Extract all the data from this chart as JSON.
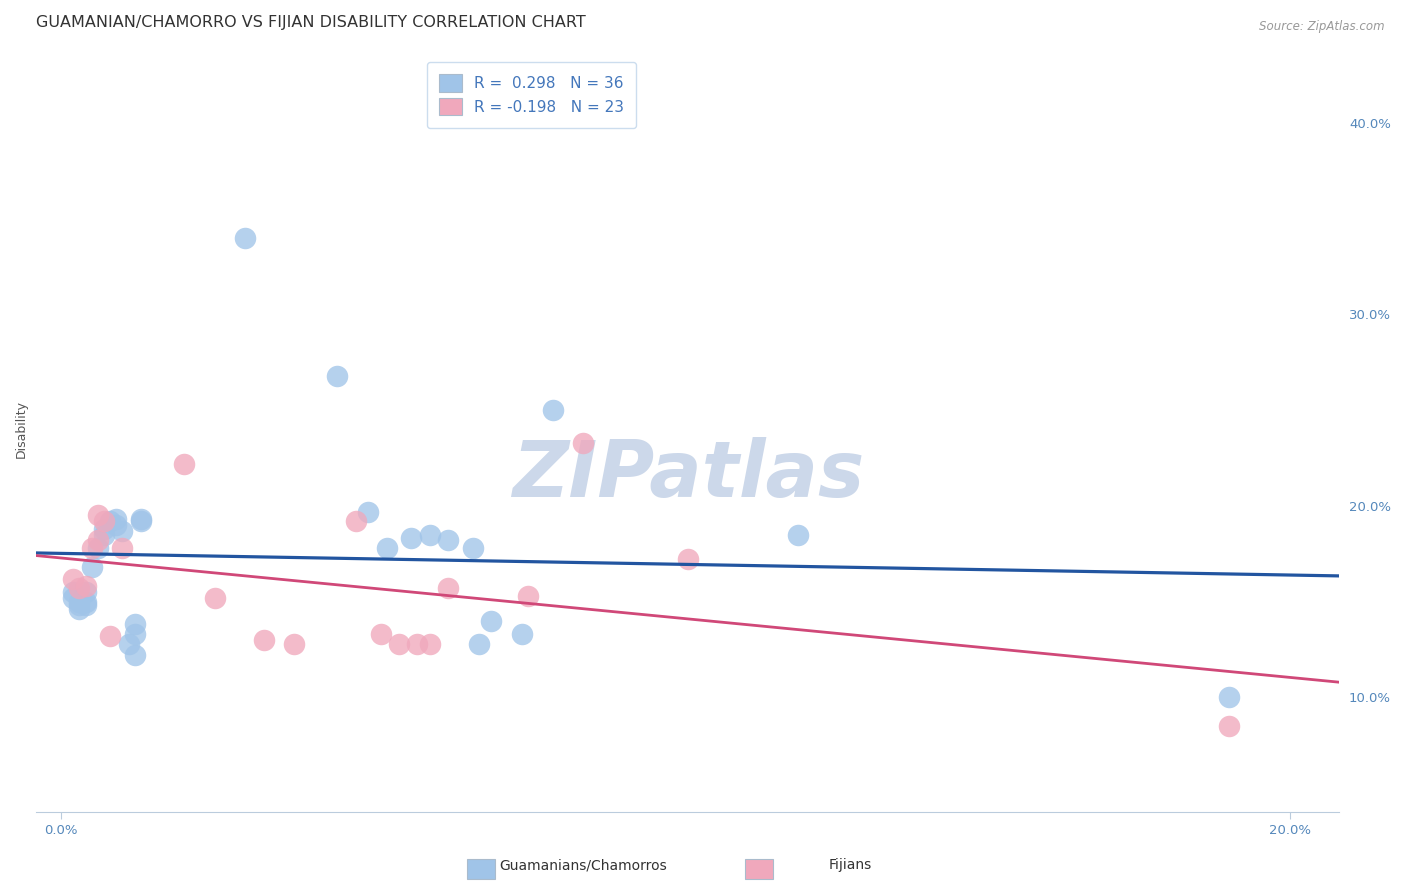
{
  "title": "GUAMANIAN/CHAMORRO VS FIJIAN DISABILITY CORRELATION CHART",
  "source": "Source: ZipAtlas.com",
  "blue_label": "Guamanians/Chamorros",
  "pink_label": "Fijians",
  "blue_R": 0.298,
  "blue_N": 36,
  "pink_R": -0.198,
  "pink_N": 23,
  "blue_color": "#a0c4e8",
  "pink_color": "#f0a8bc",
  "blue_line_color": "#2255a0",
  "pink_line_color": "#d04878",
  "blue_scatter": [
    [
      0.002,
      0.155
    ],
    [
      0.002,
      0.152
    ],
    [
      0.003,
      0.15
    ],
    [
      0.003,
      0.148
    ],
    [
      0.003,
      0.146
    ],
    [
      0.004,
      0.155
    ],
    [
      0.004,
      0.15
    ],
    [
      0.004,
      0.148
    ],
    [
      0.005,
      0.168
    ],
    [
      0.006,
      0.178
    ],
    [
      0.007,
      0.188
    ],
    [
      0.007,
      0.185
    ],
    [
      0.008,
      0.192
    ],
    [
      0.009,
      0.193
    ],
    [
      0.009,
      0.19
    ],
    [
      0.01,
      0.187
    ],
    [
      0.011,
      0.128
    ],
    [
      0.012,
      0.122
    ],
    [
      0.012,
      0.133
    ],
    [
      0.012,
      0.138
    ],
    [
      0.013,
      0.193
    ],
    [
      0.013,
      0.192
    ],
    [
      0.03,
      0.34
    ],
    [
      0.045,
      0.268
    ],
    [
      0.05,
      0.197
    ],
    [
      0.053,
      0.178
    ],
    [
      0.057,
      0.183
    ],
    [
      0.06,
      0.185
    ],
    [
      0.063,
      0.182
    ],
    [
      0.067,
      0.178
    ],
    [
      0.068,
      0.128
    ],
    [
      0.07,
      0.14
    ],
    [
      0.075,
      0.133
    ],
    [
      0.08,
      0.25
    ],
    [
      0.12,
      0.185
    ],
    [
      0.19,
      0.1
    ]
  ],
  "pink_scatter": [
    [
      0.002,
      0.162
    ],
    [
      0.003,
      0.157
    ],
    [
      0.004,
      0.158
    ],
    [
      0.005,
      0.178
    ],
    [
      0.006,
      0.182
    ],
    [
      0.006,
      0.195
    ],
    [
      0.007,
      0.192
    ],
    [
      0.008,
      0.132
    ],
    [
      0.01,
      0.178
    ],
    [
      0.02,
      0.222
    ],
    [
      0.025,
      0.152
    ],
    [
      0.033,
      0.13
    ],
    [
      0.038,
      0.128
    ],
    [
      0.048,
      0.192
    ],
    [
      0.052,
      0.133
    ],
    [
      0.055,
      0.128
    ],
    [
      0.058,
      0.128
    ],
    [
      0.06,
      0.128
    ],
    [
      0.063,
      0.157
    ],
    [
      0.076,
      0.153
    ],
    [
      0.085,
      0.233
    ],
    [
      0.102,
      0.172
    ],
    [
      0.19,
      0.085
    ]
  ],
  "xlim": [
    -0.004,
    0.208
  ],
  "ylim": [
    0.04,
    0.44
  ],
  "xlabel_edge_vals": [
    0.0,
    0.2
  ],
  "ylabel_vals": [
    0.1,
    0.2,
    0.3,
    0.4
  ],
  "watermark": "ZIPatlas",
  "watermark_color": "#ccd8ea",
  "background_color": "#ffffff",
  "grid_color": "#c8d8e4",
  "title_fontsize": 11.5,
  "ylabel_fontsize": 9,
  "tick_fontsize": 9.5,
  "legend_fontsize": 11
}
